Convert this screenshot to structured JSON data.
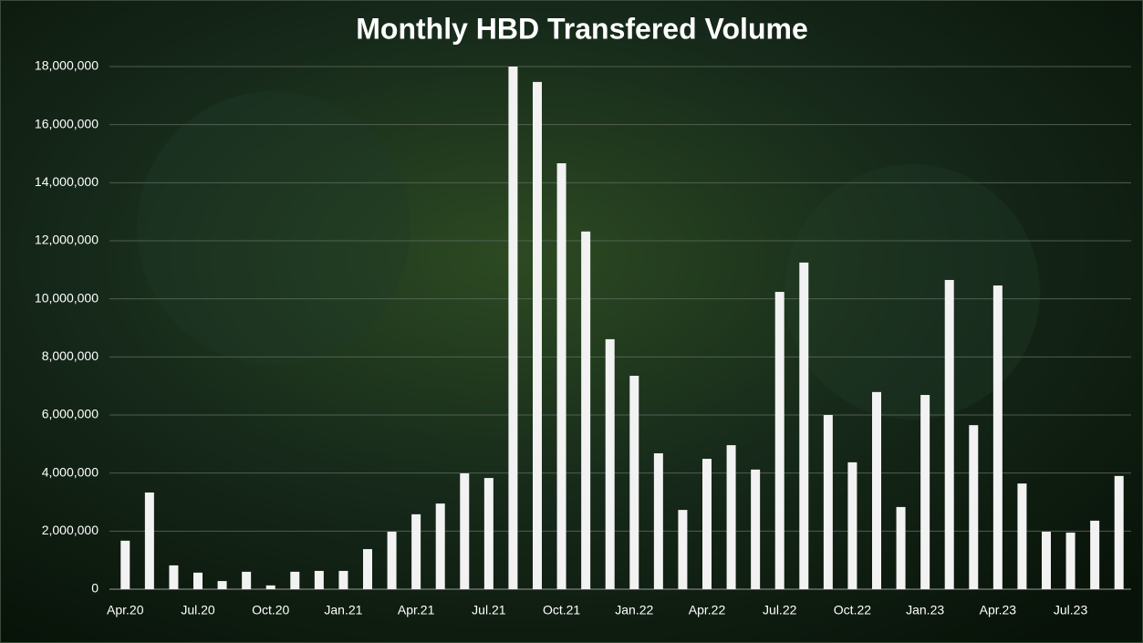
{
  "chart_data": {
    "type": "bar",
    "title": "Monthly HBD Transfered Volume",
    "categories": [
      "Apr.20",
      null,
      null,
      "Jul.20",
      null,
      null,
      "Oct.20",
      null,
      null,
      "Jan.21",
      null,
      null,
      "Apr.21",
      null,
      null,
      "Jul.21",
      null,
      null,
      "Oct.21",
      null,
      null,
      "Jan.22",
      null,
      null,
      "Apr.22",
      null,
      null,
      "Jul.22",
      null,
      null,
      "Oct.22",
      null,
      null,
      "Jan.23",
      null,
      null,
      "Apr.23",
      null,
      null,
      "Jul.23",
      null,
      null
    ],
    "values": [
      1670000,
      3330000,
      820000,
      570000,
      280000,
      600000,
      130000,
      600000,
      630000,
      630000,
      1380000,
      1980000,
      2580000,
      2950000,
      3990000,
      3830000,
      18000000,
      17470000,
      14670000,
      12320000,
      8610000,
      7350000,
      4680000,
      2730000,
      4490000,
      4960000,
      4120000,
      10240000,
      11250000,
      6000000,
      4370000,
      6790000,
      2830000,
      6690000,
      10650000,
      5650000,
      10460000,
      3640000,
      1980000,
      1950000,
      2360000,
      3900000
    ],
    "color": "#f2f2f2",
    "ylim": [
      0,
      18000000
    ],
    "yticks": [
      0,
      {
        "value": 2000000,
        "label": "2,000,000"
      },
      {
        "value": 4000000,
        "label": "4,000,000"
      },
      {
        "value": 6000000,
        "label": "6,000,000"
      },
      {
        "value": 8000000,
        "label": "8,000,000"
      },
      {
        "value": 10000000,
        "label": "10,000,000"
      },
      {
        "value": 12000000,
        "label": "12,000,000"
      },
      {
        "value": 14000000,
        "label": "14,000,000"
      },
      {
        "value": 16000000,
        "label": "16,000,000"
      },
      {
        "value": 18000000,
        "label": "18,000,000"
      }
    ],
    "grid": true
  }
}
